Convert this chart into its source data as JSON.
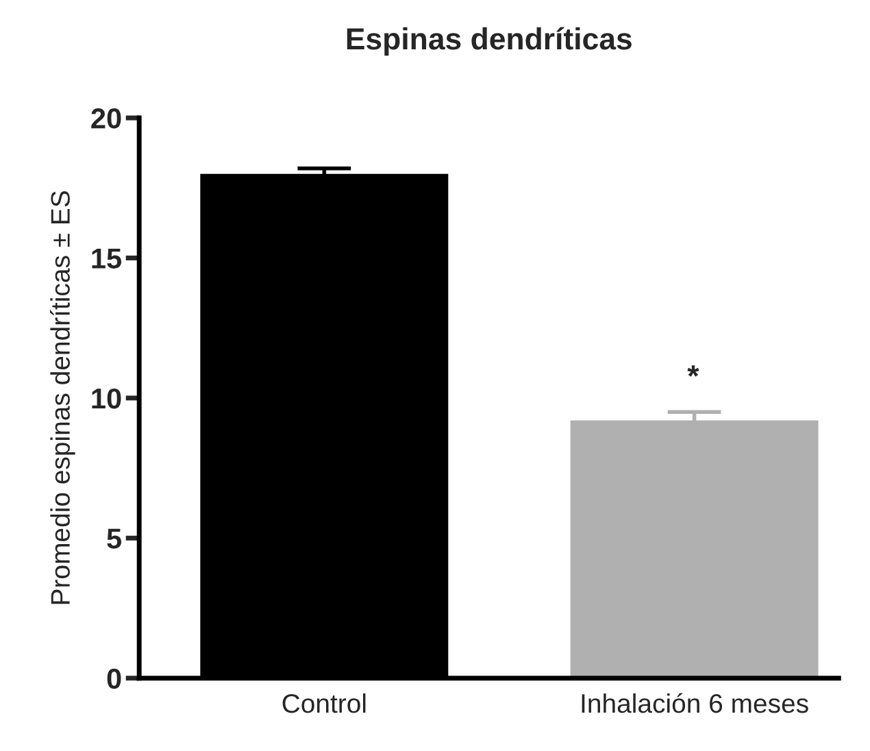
{
  "chart_data": {
    "type": "bar",
    "title": "Espinas dendríticas",
    "ylabel": "Promedio espinas dendríticas ± ES",
    "categories": [
      "Control",
      "Inhalación 6 meses"
    ],
    "values": [
      18.0,
      9.2
    ],
    "errors": [
      0.2,
      0.3
    ],
    "colors": [
      "#000000",
      "#b0b0b0"
    ],
    "ylim": [
      0,
      20
    ],
    "yticks": [
      0,
      5,
      10,
      15,
      20
    ],
    "annotations": [
      "*"
    ],
    "grid": false,
    "legend": false
  }
}
